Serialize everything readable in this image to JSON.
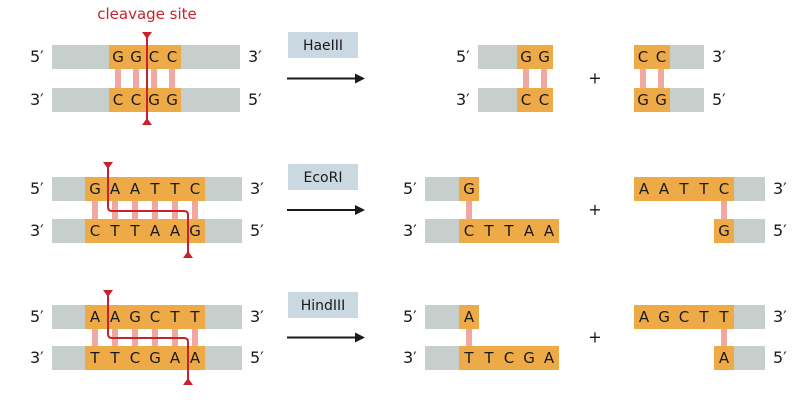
{
  "title_label": "cleavage site",
  "ends": {
    "five": "5′",
    "three": "3′"
  },
  "plus": "+",
  "colors": {
    "backbone": "#c7cfcd",
    "site": "#eeaa47",
    "bond": "#f0a8a0",
    "enzyme_box": "#c9d8e1",
    "cut": "#c8232c",
    "arrow": "#1a1a1a"
  },
  "reactions": [
    {
      "enzyme": "HaeIII",
      "site_top": [
        "G",
        "G",
        "C",
        "C"
      ],
      "site_bottom": [
        "C",
        "C",
        "G",
        "G"
      ],
      "left_product": {
        "top": [
          "G",
          "G"
        ],
        "bottom": [
          "C",
          "C"
        ]
      },
      "right_product": {
        "top": [
          "C",
          "C"
        ],
        "bottom": [
          "G",
          "G"
        ]
      }
    },
    {
      "enzyme": "EcoRI",
      "site_top": [
        "G",
        "A",
        "A",
        "T",
        "T",
        "C"
      ],
      "site_bottom": [
        "C",
        "T",
        "T",
        "A",
        "A",
        "G"
      ],
      "left_product": {
        "top": [
          "G"
        ],
        "bottom": [
          "C",
          "T",
          "T",
          "A",
          "A"
        ]
      },
      "right_product": {
        "top": [
          "A",
          "A",
          "T",
          "T",
          "C"
        ],
        "bottom": [
          "G"
        ]
      }
    },
    {
      "enzyme": "HindIII",
      "site_top": [
        "A",
        "A",
        "G",
        "C",
        "T",
        "T"
      ],
      "site_bottom": [
        "T",
        "T",
        "C",
        "G",
        "A",
        "A"
      ],
      "left_product": {
        "top": [
          "A"
        ],
        "bottom": [
          "T",
          "T",
          "C",
          "G",
          "A"
        ]
      },
      "right_product": {
        "top": [
          "A",
          "G",
          "C",
          "T",
          "T"
        ],
        "bottom": [
          "A"
        ]
      }
    }
  ]
}
